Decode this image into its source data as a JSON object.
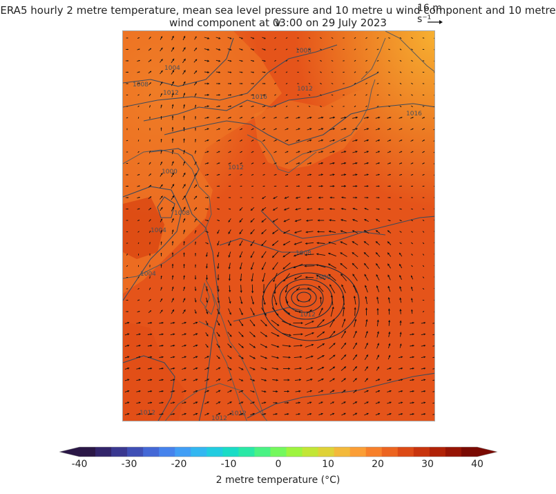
{
  "title": {
    "line1": "ERA5 hourly 2 metre temperature, mean sea level pressure and 10 metre u wind component and 10 metre v",
    "line2": "wind component at 03:00 on 29 July 2023"
  },
  "reference_vector": {
    "label": "16 m s⁻¹",
    "magnitude": 16
  },
  "map": {
    "contour_labels": [
      "1004",
      "1008",
      "1008",
      "1012",
      "1016",
      "1012",
      "1016",
      "1000",
      "1012",
      "1008",
      "1004",
      "1008",
      "1004",
      "1000",
      "1012",
      "1012",
      "1012",
      "1012"
    ],
    "colors": {
      "warm": "#e24e14",
      "hot": "#f07a22",
      "land_cool": "#f39033",
      "contour": "#3a4a5a",
      "coast": "#555555",
      "arrow": "#111111"
    }
  },
  "colorbar": {
    "label": "2 metre temperature (°C)",
    "ticks": [
      "-40",
      "-30",
      "-20",
      "-10",
      "0",
      "10",
      "20",
      "30",
      "40"
    ],
    "tick_values": [
      -40,
      -30,
      -20,
      -10,
      0,
      10,
      20,
      30,
      40
    ],
    "range": [
      -40,
      40
    ],
    "extend": "both",
    "colors": [
      "#2a1746",
      "#32246a",
      "#3a3890",
      "#3f4fb5",
      "#4468d6",
      "#4683ec",
      "#419ef5",
      "#33b7f1",
      "#22cce0",
      "#1adcc6",
      "#2ae8a6",
      "#4af284",
      "#74f85d",
      "#9ef43f",
      "#c2e636",
      "#dfd238",
      "#f3b93b",
      "#fb9e36",
      "#f7802b",
      "#ec6420",
      "#dc4a16",
      "#c8340d",
      "#b02207",
      "#961404",
      "#7a0a02"
    ]
  }
}
